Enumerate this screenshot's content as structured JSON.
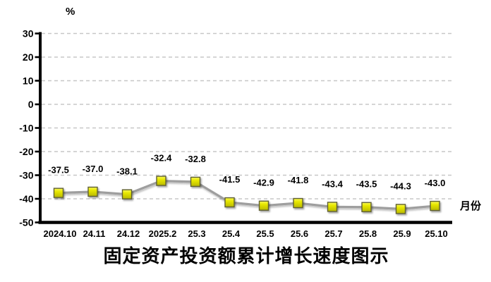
{
  "chart_data": {
    "type": "line",
    "title": "固定资产投资额累计增长速度图示",
    "ylabel": "%",
    "xlabel": "月份",
    "categories": [
      "2024.10",
      "24.11",
      "24.12",
      "2025.2",
      "25.3",
      "25.4",
      "25.5",
      "25.6",
      "25.7",
      "25.8",
      "25.9",
      "25.10"
    ],
    "values": [
      -37.5,
      -37.0,
      -38.1,
      -32.4,
      -32.8,
      -41.5,
      -42.9,
      -41.8,
      -43.4,
      -43.5,
      -44.3,
      -43.0
    ],
    "data_labels": [
      "-37.5",
      "-37.0",
      "-38.1",
      "-32.4",
      "-32.8",
      "-41.5",
      "-42.9",
      "-41.8",
      "-43.4",
      "-43.5",
      "-44.3",
      "-43.0"
    ],
    "ylim": [
      -50,
      30
    ],
    "yticks": [
      30,
      20,
      10,
      0,
      -10,
      -20,
      -30,
      -40,
      -50
    ],
    "grid": true,
    "legend": "none",
    "colors": {
      "line": "#9e9e9e",
      "line_shadow": "#c9c9c9",
      "marker_fill_top": "#f9f95a",
      "marker_fill_mid": "#e8e800",
      "marker_fill_bottom": "#b9b900",
      "marker_border": "#5f5f33",
      "gridline": "#c7c7c7",
      "axis": "#000000",
      "text": "#000000"
    }
  }
}
